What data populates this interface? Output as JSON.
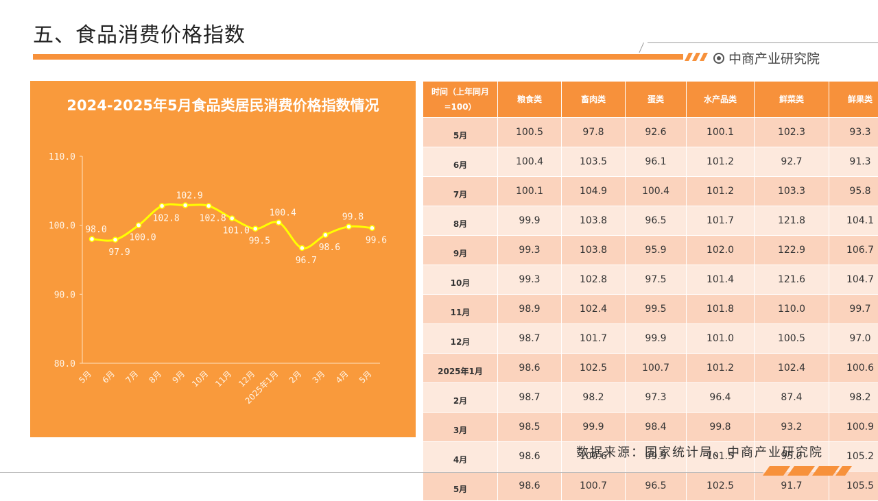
{
  "page": {
    "title": "五、食品消费价格指数",
    "brand": "中商产业研究院",
    "source": "数据来源：国家统计局、中商产业研究院"
  },
  "colors": {
    "accent": "#f7913b",
    "panel": "#f99a3c",
    "line": "#ffff00",
    "row_dark": "#fbd3bd",
    "row_light": "#fde9dd"
  },
  "icons": [
    "brand-logo-icon"
  ],
  "chart_data": {
    "type": "line",
    "title": "2024-2025年5月食品类居民消费价格指数情况",
    "categories": [
      "5月",
      "6月",
      "7月",
      "8月",
      "9月",
      "10月",
      "11月",
      "12月",
      "2025年1月",
      "2月",
      "3月",
      "4月",
      "5月"
    ],
    "values": [
      98.0,
      97.9,
      100.0,
      102.8,
      102.9,
      102.8,
      101.0,
      99.5,
      100.4,
      96.7,
      98.6,
      99.8,
      99.6
    ],
    "data_labels": [
      "98.0",
      "97.9",
      "100.0",
      "102.8",
      "102.9",
      "102.8",
      "101.0",
      "99.5",
      "100.4",
      "96.7",
      "98.6",
      "99.8",
      "99.6"
    ],
    "ylim": [
      80.0,
      110.0
    ],
    "yticks": [
      "80.0",
      "90.0",
      "100.0",
      "110.0"
    ],
    "xlabel": "",
    "ylabel": "",
    "grid": false,
    "smooth": true
  },
  "table": {
    "headers": [
      "时间（上年同月=100）",
      "粮食类",
      "畜肉类",
      "蛋类",
      "水产品类",
      "鲜菜类",
      "鲜果类"
    ],
    "rows": [
      [
        "5月",
        "100.5",
        "97.8",
        "92.6",
        "100.1",
        "102.3",
        "93.3"
      ],
      [
        "6月",
        "100.4",
        "103.5",
        "96.1",
        "101.2",
        "92.7",
        "91.3"
      ],
      [
        "7月",
        "100.1",
        "104.9",
        "100.4",
        "101.2",
        "103.3",
        "95.8"
      ],
      [
        "8月",
        "99.9",
        "103.8",
        "96.5",
        "101.7",
        "121.8",
        "104.1"
      ],
      [
        "9月",
        "99.3",
        "103.8",
        "95.9",
        "102.0",
        "122.9",
        "106.7"
      ],
      [
        "10月",
        "99.3",
        "102.8",
        "97.5",
        "101.4",
        "121.6",
        "104.7"
      ],
      [
        "11月",
        "98.9",
        "102.4",
        "99.5",
        "101.8",
        "110.0",
        "99.7"
      ],
      [
        "12月",
        "98.7",
        "101.7",
        "99.9",
        "101.0",
        "100.5",
        "97.0"
      ],
      [
        "2025年1月",
        "98.6",
        "102.5",
        "100.7",
        "101.2",
        "102.4",
        "100.6"
      ],
      [
        "2月",
        "98.7",
        "98.2",
        "97.3",
        "96.4",
        "87.4",
        "98.2"
      ],
      [
        "3月",
        "98.5",
        "99.9",
        "98.4",
        "99.8",
        "93.2",
        "100.9"
      ],
      [
        "4月",
        "98.6",
        "100.6",
        "99.5",
        "101.5",
        "95.0",
        "105.2"
      ],
      [
        "5月",
        "98.6",
        "100.7",
        "96.5",
        "102.5",
        "91.7",
        "105.5"
      ]
    ]
  }
}
